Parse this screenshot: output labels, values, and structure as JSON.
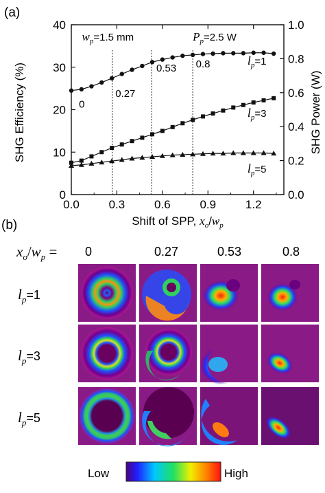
{
  "panel_a_label": "(a)",
  "panel_b_label": "(b)",
  "annotations": {
    "wp_sym": "w",
    "wp_sub": "p",
    "wp_val": "=1.5 mm",
    "pp_sym": "P",
    "pp_sub": "p",
    "pp_val": "=2.5 W"
  },
  "chart_data": {
    "type": "line",
    "xlabel_text": "Shift of SPP, ",
    "xlabel_num": "x",
    "xlabel_num_sub": "o",
    "xlabel_den": "w",
    "xlabel_den_sub": "p",
    "ylabel": "SHG Efficiency (%)",
    "y2label": "SHG Power (W)",
    "xlim": [
      0.0,
      1.4
    ],
    "ylim": [
      0,
      40
    ],
    "y2lim": [
      0.0,
      1.0
    ],
    "xticks": [
      "0.0",
      "0.3",
      "0.6",
      "0.9",
      "1.2"
    ],
    "yticks": [
      "0",
      "10",
      "20",
      "30",
      "40"
    ],
    "y2ticks": [
      "0.0",
      "0.2",
      "0.4",
      "0.6",
      "0.8",
      "1.0"
    ],
    "vlines": [
      0.27,
      0.53,
      0.8
    ],
    "vline_labels": [
      "0",
      "0.27",
      "0.53",
      "0.8"
    ],
    "series": [
      {
        "name": "lp=1",
        "label_sym": "l",
        "label_sub": "p",
        "label_val": "=1",
        "marker": "circle",
        "x": [
          0.0,
          0.067,
          0.133,
          0.2,
          0.267,
          0.333,
          0.4,
          0.467,
          0.533,
          0.6,
          0.667,
          0.733,
          0.8,
          0.867,
          0.933,
          1.0,
          1.067,
          1.133,
          1.2,
          1.267,
          1.333
        ],
        "y": [
          24.5,
          24.8,
          25.5,
          26.4,
          27.4,
          28.4,
          29.4,
          30.3,
          31.2,
          31.8,
          32.3,
          32.7,
          32.9,
          33.1,
          33.2,
          33.3,
          33.3,
          33.3,
          33.4,
          33.4,
          33.2
        ]
      },
      {
        "name": "lp=3",
        "label_sym": "l",
        "label_sub": "p",
        "label_val": "=3",
        "marker": "square",
        "x": [
          0.0,
          0.067,
          0.133,
          0.2,
          0.267,
          0.333,
          0.4,
          0.467,
          0.533,
          0.6,
          0.667,
          0.733,
          0.8,
          0.867,
          0.933,
          1.0,
          1.067,
          1.133,
          1.2,
          1.267,
          1.333
        ],
        "y": [
          7.5,
          8.0,
          9.0,
          10.0,
          11.0,
          11.8,
          12.6,
          13.4,
          14.2,
          15.0,
          15.9,
          16.8,
          17.6,
          18.4,
          19.1,
          19.8,
          20.5,
          21.1,
          21.7,
          22.2,
          22.7
        ]
      },
      {
        "name": "lp=5",
        "label_sym": "l",
        "label_sub": "p",
        "label_val": "=5",
        "marker": "triangle",
        "x": [
          0.0,
          0.067,
          0.133,
          0.2,
          0.267,
          0.333,
          0.4,
          0.467,
          0.533,
          0.6,
          0.667,
          0.733,
          0.8,
          0.867,
          0.933,
          1.0,
          1.067,
          1.133,
          1.2,
          1.267,
          1.333
        ],
        "y": [
          6.8,
          7.0,
          7.3,
          7.6,
          7.9,
          8.2,
          8.5,
          8.7,
          8.9,
          9.1,
          9.3,
          9.4,
          9.5,
          9.6,
          9.7,
          9.7,
          9.8,
          9.8,
          9.8,
          9.8,
          9.7
        ]
      }
    ]
  },
  "panel_b": {
    "header_x": "x",
    "header_x_sub": "o",
    "header_slash": "/",
    "header_w": "w",
    "header_w_sub": "p",
    "header_eq": " =",
    "columns": [
      "0",
      "0.27",
      "0.53",
      "0.8"
    ],
    "rows": [
      {
        "sym": "l",
        "sub": "p",
        "val": "=1"
      },
      {
        "sym": "l",
        "sub": "p",
        "val": "=3"
      },
      {
        "sym": "l",
        "sub": "p",
        "val": "=5"
      }
    ],
    "colorbar_low": "Low",
    "colorbar_high": "High"
  }
}
